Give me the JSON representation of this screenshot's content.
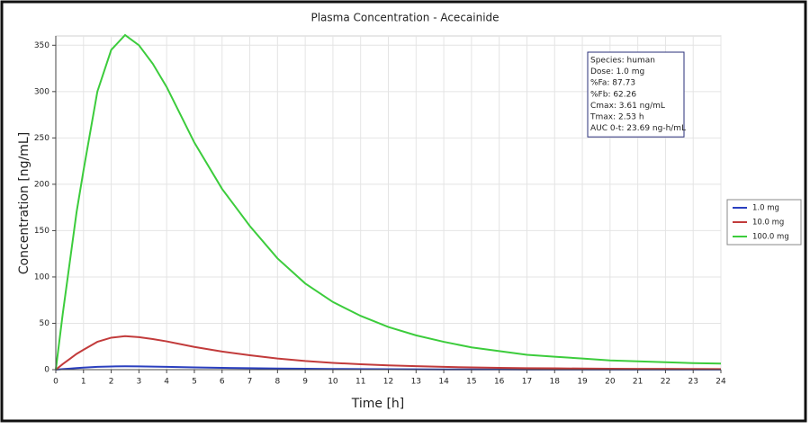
{
  "chart_data": {
    "type": "line",
    "title": "Plasma Concentration - Acecainide",
    "xlabel": "Time [h]",
    "ylabel": "Concentration [ng/mL]",
    "x": [
      0,
      0.25,
      0.5,
      0.75,
      1,
      1.5,
      2,
      2.5,
      3,
      3.5,
      4,
      5,
      6,
      7,
      8,
      9,
      10,
      11,
      12,
      13,
      14,
      15,
      16,
      17,
      18,
      19,
      20,
      21,
      22,
      23,
      24
    ],
    "series": [
      {
        "name": "1.0 mg",
        "color": "#2a3fbf",
        "values": [
          0,
          0.6,
          1.15,
          1.7,
          2.15,
          3.0,
          3.45,
          3.61,
          3.5,
          3.3,
          3.05,
          2.45,
          1.95,
          1.55,
          1.2,
          0.93,
          0.73,
          0.58,
          0.46,
          0.37,
          0.3,
          0.24,
          0.2,
          0.16,
          0.14,
          0.12,
          0.1,
          0.09,
          0.08,
          0.07,
          0.065
        ]
      },
      {
        "name": "10.0 mg",
        "color": "#c23b3b",
        "values": [
          0,
          6,
          11.5,
          17,
          21.5,
          30,
          34.5,
          36.1,
          35,
          33,
          30.5,
          24.5,
          19.5,
          15.5,
          12,
          9.3,
          7.3,
          5.8,
          4.6,
          3.7,
          3,
          2.4,
          2,
          1.6,
          1.4,
          1.2,
          1,
          0.9,
          0.8,
          0.7,
          0.65
        ]
      },
      {
        "name": "100.0 mg",
        "color": "#3ccc3c",
        "values": [
          0,
          60,
          115,
          170,
          215,
          300,
          345,
          361,
          350,
          330,
          305,
          245,
          195,
          155,
          120,
          93,
          73,
          58,
          46,
          37,
          30,
          24,
          20,
          16,
          14,
          12,
          10,
          9,
          8,
          7,
          6.5
        ]
      }
    ],
    "xlim": [
      0,
      24
    ],
    "xticks": [
      0,
      1,
      2,
      3,
      4,
      5,
      6,
      7,
      8,
      9,
      10,
      11,
      12,
      13,
      14,
      15,
      16,
      17,
      18,
      19,
      20,
      21,
      22,
      23,
      24
    ],
    "ylim": [
      0,
      360
    ],
    "yticks": [
      0,
      50,
      100,
      150,
      200,
      250,
      300,
      350
    ],
    "grid": true,
    "legend": "right",
    "annotation": [
      "Species: human",
      "Dose: 1.0 mg",
      "%Fa: 87.73",
      "%Fb: 62.26",
      "Cmax: 3.61 ng/mL",
      "Tmax: 2.53 h",
      "AUC 0-t: 23.69 ng-h/mL"
    ]
  }
}
